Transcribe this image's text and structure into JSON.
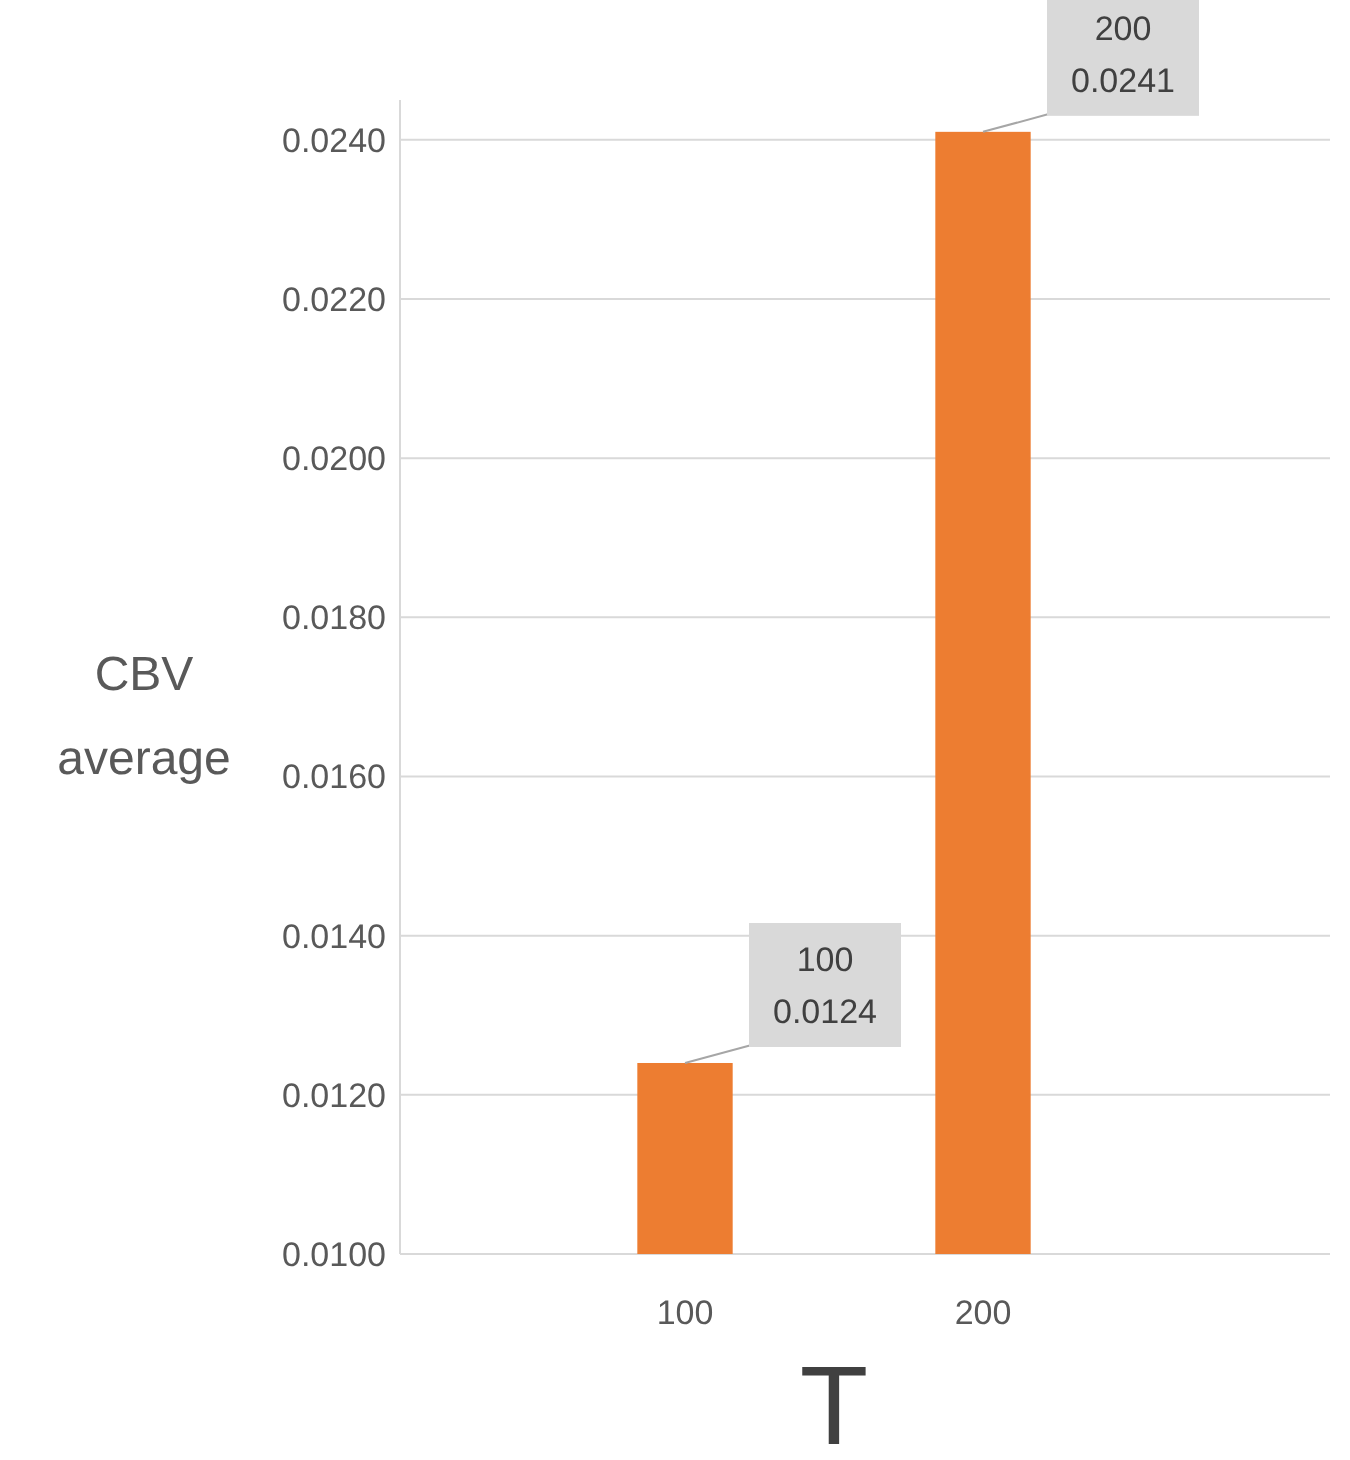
{
  "chart_data": {
    "type": "bar",
    "xlabel": "T",
    "ylabel": "CBV average",
    "categories": [
      "100",
      "200"
    ],
    "values": [
      0.0124,
      0.0241
    ],
    "color": "#ed7d31",
    "ylim": [
      0.01,
      0.0245
    ],
    "yticks": [
      {
        "value": 0.01,
        "label": "0.0100"
      },
      {
        "value": 0.012,
        "label": "0.0120"
      },
      {
        "value": 0.014,
        "label": "0.0140"
      },
      {
        "value": 0.016,
        "label": "0.0160"
      },
      {
        "value": 0.018,
        "label": "0.0180"
      },
      {
        "value": 0.02,
        "label": "0.0200"
      },
      {
        "value": 0.022,
        "label": "0.0220"
      },
      {
        "value": 0.024,
        "label": "0.0240"
      }
    ],
    "grid": "y",
    "data_labels": true
  }
}
